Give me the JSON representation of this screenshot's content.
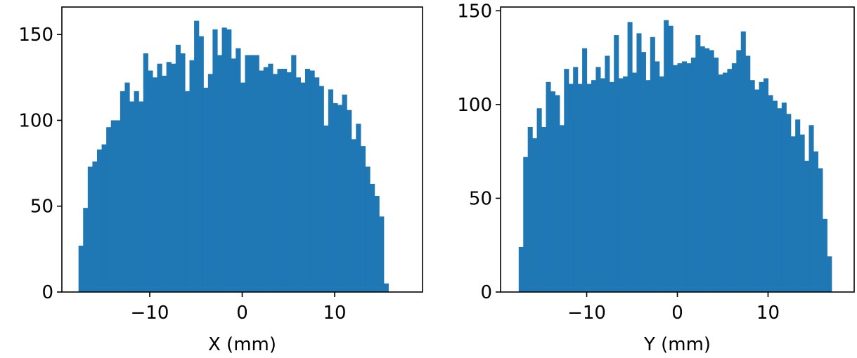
{
  "chart_data": [
    {
      "type": "bar",
      "subtype": "histogram",
      "title": "",
      "xlabel": "X (mm)",
      "ylabel": "",
      "xlim": [
        -19.5,
        19.5
      ],
      "ylim": [
        0,
        166
      ],
      "x_ticks": [
        -10,
        0,
        10
      ],
      "x_tick_labels": [
        "−10",
        "0",
        "10"
      ],
      "y_ticks": [
        0,
        50,
        100,
        150
      ],
      "y_tick_labels": [
        "0",
        "50",
        "100",
        "150"
      ],
      "grid": false,
      "color": "#1f77b4",
      "bin_start": -17.7,
      "bin_width": 0.5,
      "values": [
        27,
        49,
        73,
        76,
        83,
        86,
        96,
        100,
        100,
        117,
        122,
        111,
        117,
        111,
        139,
        129,
        125,
        133,
        126,
        134,
        133,
        144,
        139,
        117,
        135,
        158,
        149,
        119,
        127,
        153,
        138,
        154,
        153,
        136,
        142,
        122,
        138,
        138,
        138,
        129,
        131,
        133,
        127,
        130,
        130,
        128,
        138,
        125,
        122,
        130,
        129,
        125,
        120,
        97,
        118,
        110,
        109,
        115,
        106,
        89,
        98,
        85,
        73,
        63,
        56,
        44,
        5
      ]
    },
    {
      "type": "bar",
      "subtype": "histogram",
      "title": "",
      "xlabel": "Y (mm)",
      "ylabel": "",
      "xlim": [
        -19.5,
        19.5
      ],
      "ylim": [
        0,
        152
      ],
      "x_ticks": [
        -10,
        0,
        10
      ],
      "x_tick_labels": [
        "−10",
        "0",
        "10"
      ],
      "y_ticks": [
        0,
        50,
        100,
        150
      ],
      "y_tick_labels": [
        "0",
        "50",
        "100",
        "150"
      ],
      "grid": false,
      "color": "#1f77b4",
      "bin_start": -17.5,
      "bin_width": 0.5,
      "values": [
        24,
        72,
        88,
        82,
        98,
        88,
        112,
        107,
        105,
        89,
        119,
        111,
        120,
        111,
        130,
        111,
        113,
        120,
        114,
        126,
        112,
        137,
        114,
        115,
        144,
        117,
        138,
        128,
        113,
        136,
        123,
        115,
        145,
        142,
        121,
        122,
        123,
        122,
        125,
        137,
        131,
        130,
        129,
        125,
        116,
        117,
        119,
        122,
        129,
        139,
        126,
        113,
        108,
        112,
        114,
        105,
        102,
        98,
        101,
        95,
        83,
        92,
        84,
        70,
        89,
        75,
        66,
        39,
        19
      ]
    }
  ]
}
